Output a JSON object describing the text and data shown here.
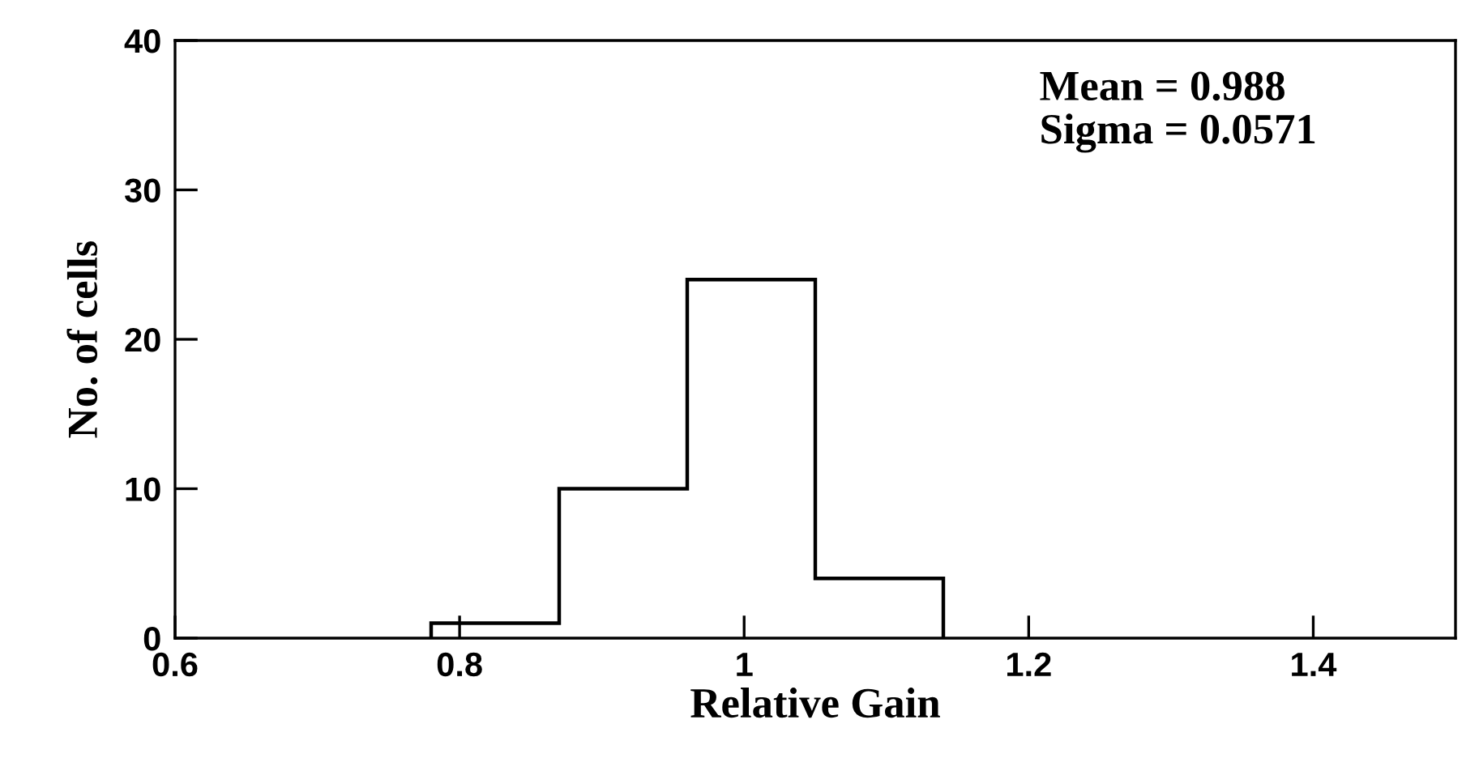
{
  "chart_data": {
    "type": "histogram",
    "xlabel": "Relative Gain",
    "ylabel": "No. of cells",
    "bins": [
      0.78,
      0.87,
      0.96,
      1.05,
      1.14
    ],
    "values": [
      1,
      10,
      24,
      4
    ],
    "color": "#000000",
    "xlim": [
      0.6,
      1.5
    ],
    "xticks": [
      0.6,
      0.8,
      {
        "value": 1,
        "label": "1"
      },
      1.2,
      1.4
    ],
    "ylim": [
      0,
      40
    ],
    "yticks": [
      0,
      10,
      20,
      30,
      40
    ],
    "grid": false,
    "legend": false,
    "annotations": [
      "Mean = 0.988",
      "Sigma = 0.0571"
    ]
  }
}
